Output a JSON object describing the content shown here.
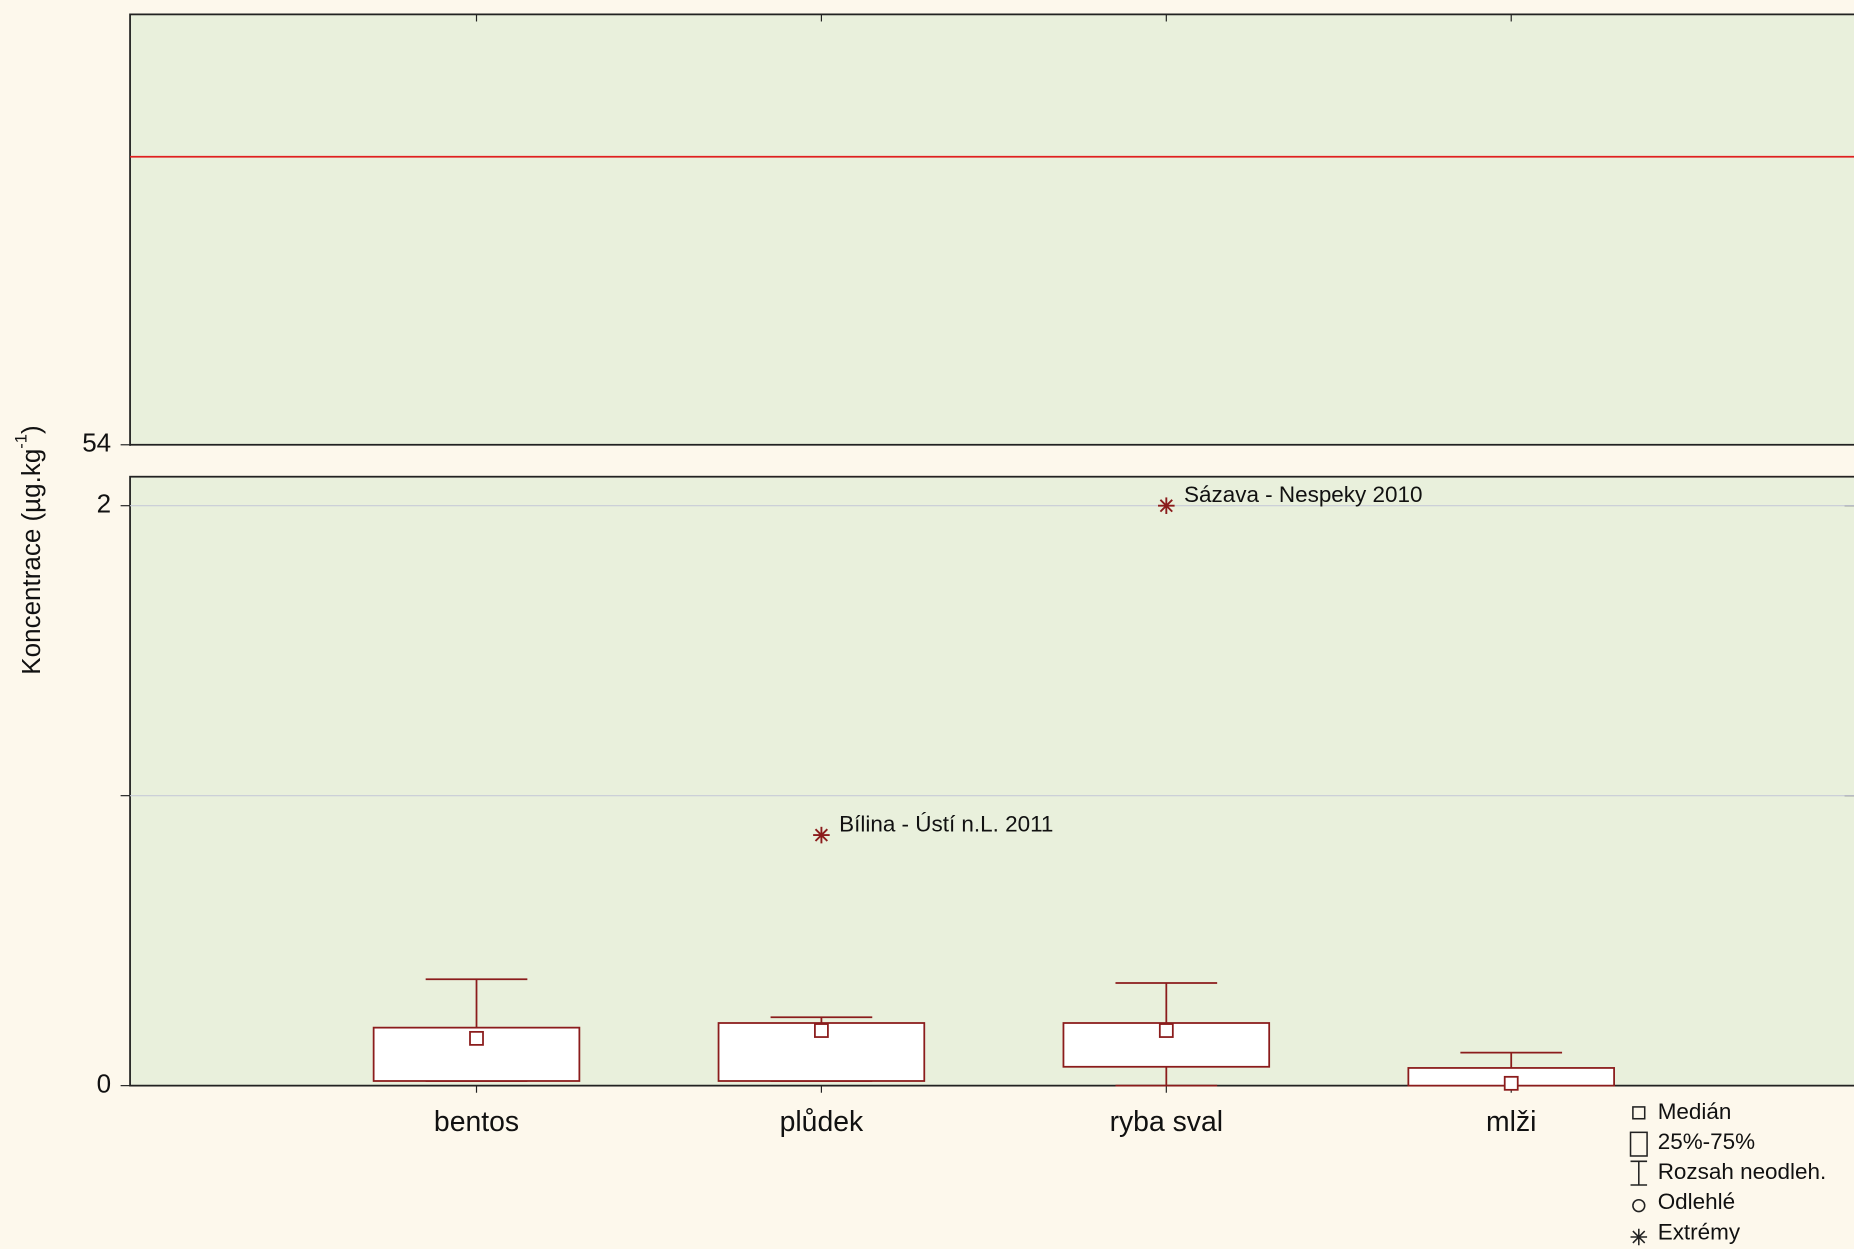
{
  "chart_data": {
    "type": "box",
    "y_label": {
      "text": "Koncentrace (µg.kg",
      "sup": "-1",
      "end": ")"
    },
    "categories": [
      "bentos",
      "plůdek",
      "ryba sval",
      "mlži"
    ],
    "color": "#8b1c1c",
    "box_fill": "#ffffff",
    "q1": [
      0.016,
      0.016,
      0.065,
      0
    ],
    "median": [
      0.163,
      0.19,
      0.19,
      0.008
    ],
    "q3": [
      0.2,
      0.216,
      0.216,
      0.061
    ],
    "whisker_low": [
      0.016,
      0.016,
      0,
      0
    ],
    "whisker_high": [
      0.367,
      0.236,
      0.354,
      0.114
    ],
    "extremes": [
      null,
      0.864,
      2.0,
      null
    ],
    "extreme_labels": [
      null,
      "Bílina - Ústí n.L. 2011",
      "Sázava - Nespeky 2010",
      null
    ],
    "ylim": [
      0,
      2.1
    ],
    "yticks": [
      0,
      {
        "value": 1,
        "label": null
      },
      2
    ],
    "upper_ylim": [
      54,
      80
    ],
    "upper_yticks": [
      54
    ],
    "reference_line": 71.4,
    "reference_color": "#e02020",
    "grid": true,
    "legend": [
      "Medián",
      "25%-75%",
      "Rozsah neodleh.",
      "Odlehlé",
      "Extrémy"
    ]
  }
}
